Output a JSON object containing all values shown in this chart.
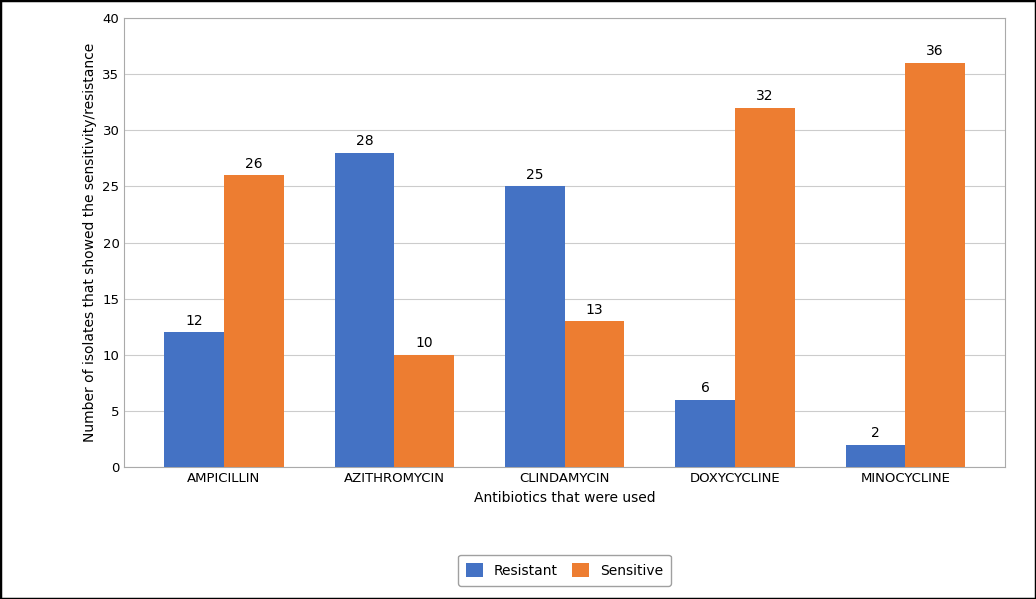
{
  "categories": [
    "AMPICILLIN",
    "AZITHROMYCIN",
    "CLINDAMYCIN",
    "DOXYCYCLINE",
    "MINOCYCLINE"
  ],
  "resistant": [
    12,
    28,
    25,
    6,
    2
  ],
  "sensitive": [
    26,
    10,
    13,
    32,
    36
  ],
  "resistant_color": "#4472C4",
  "sensitive_color": "#ED7D31",
  "xlabel": "Antibiotics that were used",
  "ylabel": "Number of isolates that showed the sensitivity/resistance",
  "ylim": [
    0,
    40
  ],
  "yticks": [
    0,
    5,
    10,
    15,
    20,
    25,
    30,
    35,
    40
  ],
  "legend_labels": [
    "Resistant",
    "Sensitive"
  ],
  "bar_width": 0.35,
  "background_color": "#ffffff",
  "label_fontsize": 10,
  "tick_fontsize": 9.5,
  "annotation_fontsize": 10
}
